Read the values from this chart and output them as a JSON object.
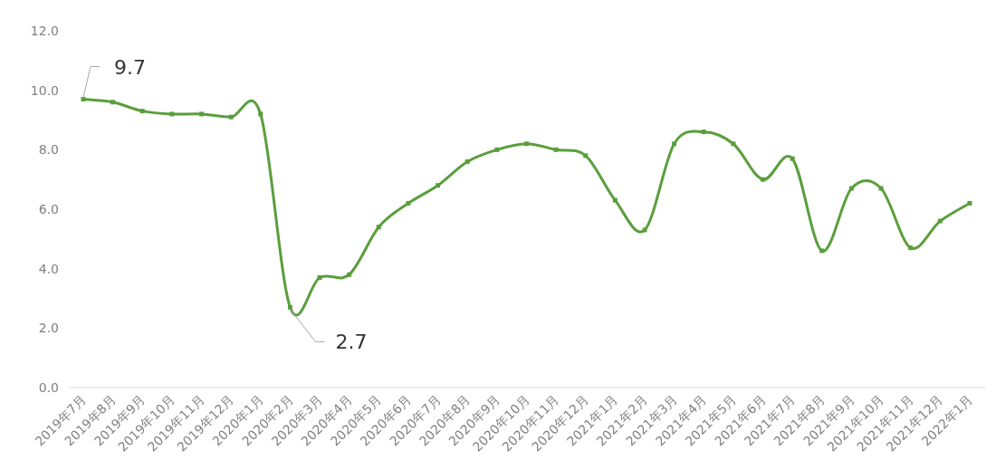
{
  "chart_data": {
    "type": "line",
    "categories": [
      "2019年7月",
      "2019年8月",
      "2019年9月",
      "2019年10月",
      "2019年11月",
      "2019年12月",
      "2020年1月",
      "2020年2月",
      "2020年3月",
      "2020年4月",
      "2020年5月",
      "2020年6月",
      "2020年7月",
      "2020年8月",
      "2020年9月",
      "2020年10月",
      "2020年11月",
      "2020年12月",
      "2021年1月",
      "2021年2月",
      "2021年3月",
      "2021年4月",
      "2021年5月",
      "2021年6月",
      "2021年7月",
      "2021年8月",
      "2021年9月",
      "2021年10月",
      "2021年11月",
      "2021年12月",
      "2022年1月"
    ],
    "series": [
      {
        "color": "#5a9e3c",
        "values": [
          9.7,
          9.6,
          9.3,
          9.2,
          9.2,
          9.1,
          9.2,
          2.7,
          3.7,
          3.8,
          5.4,
          6.2,
          6.8,
          7.6,
          8.0,
          8.2,
          8.0,
          7.8,
          6.3,
          5.3,
          8.2,
          8.6,
          8.2,
          7.0,
          7.7,
          4.6,
          6.7,
          6.7,
          4.7,
          5.6,
          6.2
        ],
        "value_labels": [
          "9.7",
          null,
          null,
          null,
          null,
          null,
          null,
          "2.7",
          null,
          null,
          null,
          null,
          null,
          null,
          null,
          null,
          null,
          null,
          null,
          null,
          null,
          null,
          null,
          null,
          null,
          null,
          null,
          null,
          null,
          null,
          null
        ]
      }
    ],
    "ylim": [
      0,
      12
    ],
    "yticks": [
      {
        "value": 0,
        "label": "0.0"
      },
      {
        "value": 2,
        "label": "2.0"
      },
      {
        "value": 4,
        "label": "4.0"
      },
      {
        "value": 6,
        "label": "6.0"
      },
      {
        "value": 8,
        "label": "8.0"
      },
      {
        "value": 10,
        "label": "10.0"
      },
      {
        "value": 12,
        "label": "12.0"
      }
    ],
    "marker": "square"
  }
}
